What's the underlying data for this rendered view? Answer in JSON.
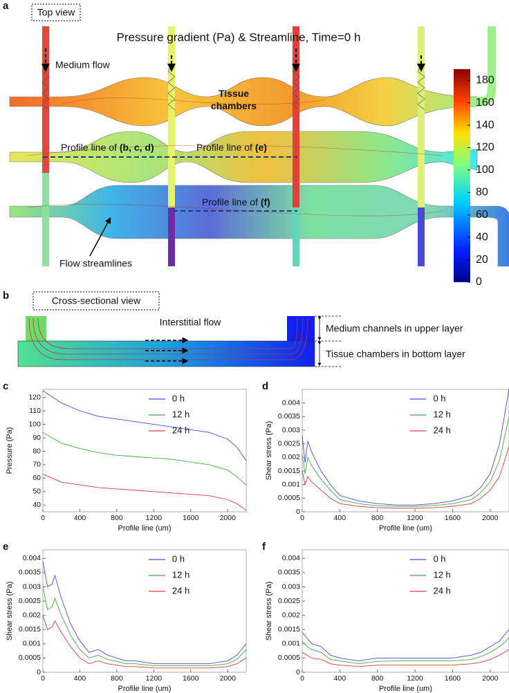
{
  "panel_a": {
    "letter": "a",
    "view": "Top view",
    "title": "Pressure gradient (Pa) & Streamline, Time=0 h",
    "medium_flow": "Medium flow",
    "tissue_chambers": "Tissue\nchambers",
    "profile_bcd": {
      "text": "Profile line of",
      "emphasis": "(b, c, d)"
    },
    "profile_e": {
      "text": "Profile line of",
      "emphasis": "(e)"
    },
    "profile_f": {
      "text": "Profile line of",
      "emphasis": "(f)"
    },
    "streamlines": "Flow streamlines",
    "colorbar": {
      "lim": [
        0,
        190
      ],
      "ticks": [
        0,
        20,
        40,
        60,
        80,
        100,
        120,
        140,
        160,
        180
      ]
    }
  },
  "panel_b": {
    "letter": "b",
    "view": "Cross-sectional view",
    "interstitial": "Interstitial flow",
    "upper": "Medium channels in upper layer",
    "bottom": "Tissue chambers in bottom layer"
  },
  "chart_data": [
    {
      "type": "line",
      "panel": "c",
      "ylabel": "Pressure (Pa)",
      "xlabel": "Profile line (um)",
      "x": [
        0,
        200,
        400,
        600,
        800,
        1000,
        1200,
        1400,
        1600,
        1800,
        2000,
        2100,
        2200
      ],
      "series": [
        {
          "name": "0 h",
          "color": "#4a4ad6",
          "values": [
            125,
            116,
            110,
            106,
            104,
            102,
            100,
            98,
            96,
            94,
            89,
            83,
            73
          ]
        },
        {
          "name": "12 h",
          "color": "#3fae3f",
          "values": [
            94,
            86,
            82,
            79,
            77,
            76,
            75,
            74,
            72,
            70,
            66,
            61,
            55
          ]
        },
        {
          "name": "24 h",
          "color": "#e03a3a",
          "values": [
            63,
            57,
            55,
            53,
            52,
            51,
            50,
            49,
            48,
            47,
            44,
            41,
            36
          ]
        }
      ],
      "xlim": [
        0,
        2200
      ],
      "xticks": [
        0,
        400,
        800,
        1200,
        1600,
        2000
      ],
      "ylim": [
        35,
        126
      ],
      "yticks": [
        40,
        50,
        60,
        70,
        80,
        90,
        100,
        110,
        120
      ],
      "legend": "upper right"
    },
    {
      "type": "line",
      "panel": "d",
      "ylabel": "Shear stress (Pa)",
      "xlabel": "Profile line (um)",
      "x": [
        0,
        30,
        60,
        100,
        200,
        300,
        400,
        600,
        800,
        1000,
        1200,
        1400,
        1600,
        1800,
        1900,
        2000,
        2100,
        2200
      ],
      "series": [
        {
          "name": "0 h",
          "color": "#4a4ad6",
          "values": [
            0.0028,
            0.0018,
            0.0026,
            0.0022,
            0.0015,
            0.001,
            0.0006,
            0.0004,
            0.0003,
            0.00025,
            0.00025,
            0.0003,
            0.0004,
            0.0006,
            0.0009,
            0.0014,
            0.0025,
            0.0045
          ]
        },
        {
          "name": "12 h",
          "color": "#3fae3f",
          "values": [
            0.0021,
            0.0014,
            0.002,
            0.0017,
            0.0012,
            0.0008,
            0.00045,
            0.0003,
            0.00022,
            0.0002,
            0.0002,
            0.00023,
            0.0003,
            0.00045,
            0.0007,
            0.0011,
            0.0019,
            0.0035
          ]
        },
        {
          "name": "24 h",
          "color": "#e03a3a",
          "values": [
            0.0015,
            0.001,
            0.0013,
            0.0011,
            0.0008,
            0.0005,
            0.0003,
            0.0002,
            0.00015,
            0.00013,
            0.00013,
            0.00015,
            0.0002,
            0.0003,
            0.0005,
            0.0008,
            0.0013,
            0.0024
          ]
        }
      ],
      "xlim": [
        0,
        2200
      ],
      "xticks": [
        0,
        400,
        800,
        1200,
        1600,
        2000
      ],
      "ylim": [
        0,
        0.0045
      ],
      "yticks": [
        0,
        0.0005,
        0.001,
        0.0015,
        0.002,
        0.0025,
        0.003,
        0.0035,
        0.004
      ],
      "legend": "upper right"
    },
    {
      "type": "line",
      "panel": "e",
      "ylabel": "Shear stress (Pa)",
      "xlabel": "Profile line (um)",
      "x": [
        0,
        50,
        100,
        130,
        200,
        300,
        400,
        500,
        600,
        700,
        800,
        900,
        1000,
        1200,
        1400,
        1600,
        1800,
        2000,
        2100,
        2200
      ],
      "series": [
        {
          "name": "0 h",
          "color": "#4a4ad6",
          "values": [
            0.0039,
            0.003,
            0.0031,
            0.0034,
            0.0026,
            0.0017,
            0.0011,
            0.0007,
            0.0008,
            0.0006,
            0.0005,
            0.0004,
            0.0004,
            0.0003,
            0.0003,
            0.0003,
            0.0003,
            0.0004,
            0.0006,
            0.001
          ]
        },
        {
          "name": "12 h",
          "color": "#3fae3f",
          "values": [
            0.003,
            0.0022,
            0.0023,
            0.0026,
            0.002,
            0.0013,
            0.0008,
            0.0005,
            0.0006,
            0.00045,
            0.00038,
            0.0003,
            0.0003,
            0.00023,
            0.00023,
            0.00023,
            0.00023,
            0.0003,
            0.00045,
            0.0008
          ]
        },
        {
          "name": "24 h",
          "color": "#e03a3a",
          "values": [
            0.002,
            0.0015,
            0.0016,
            0.0018,
            0.0014,
            0.0009,
            0.0005,
            0.0003,
            0.0004,
            0.0003,
            0.00025,
            0.0002,
            0.0002,
            0.00015,
            0.00015,
            0.00015,
            0.00015,
            0.0002,
            0.0003,
            0.0005
          ]
        }
      ],
      "xlim": [
        0,
        2200
      ],
      "xticks": [
        0,
        400,
        800,
        1200,
        1600,
        2000
      ],
      "ylim": [
        0,
        0.0043
      ],
      "yticks": [
        0,
        0.0005,
        0.001,
        0.0015,
        0.002,
        0.0025,
        0.003,
        0.0035,
        0.004
      ],
      "legend": "upper right"
    },
    {
      "type": "line",
      "panel": "f",
      "ylabel": "Shear stress (Pa)",
      "xlabel": "Profile line (um)",
      "x": [
        0,
        50,
        100,
        200,
        300,
        400,
        600,
        800,
        1000,
        1200,
        1400,
        1600,
        1800,
        1900,
        2000,
        2100,
        2200
      ],
      "series": [
        {
          "name": "0 h",
          "color": "#4a4ad6",
          "values": [
            0.0014,
            0.0012,
            0.001,
            0.0009,
            0.0006,
            0.0005,
            0.0004,
            0.0005,
            0.0005,
            0.0005,
            0.0005,
            0.0005,
            0.0006,
            0.0007,
            0.0009,
            0.0011,
            0.0015
          ]
        },
        {
          "name": "12 h",
          "color": "#3fae3f",
          "values": [
            0.0011,
            0.0009,
            0.0008,
            0.0007,
            0.00045,
            0.0004,
            0.0003,
            0.00038,
            0.0004,
            0.0004,
            0.0004,
            0.0004,
            0.00045,
            0.00055,
            0.0007,
            0.0009,
            0.0012
          ]
        },
        {
          "name": "24 h",
          "color": "#e03a3a",
          "values": [
            0.0007,
            0.0006,
            0.0005,
            0.00045,
            0.0003,
            0.00025,
            0.0002,
            0.00025,
            0.00025,
            0.00025,
            0.00025,
            0.00025,
            0.0003,
            0.00035,
            0.00045,
            0.0006,
            0.0008
          ]
        }
      ],
      "xlim": [
        0,
        2200
      ],
      "xticks": [
        0,
        400,
        800,
        1200,
        1600,
        2000
      ],
      "ylim": [
        0,
        0.0043
      ],
      "yticks": [
        0,
        0.0005,
        0.001,
        0.0015,
        0.002,
        0.0025,
        0.003,
        0.0035,
        0.004
      ],
      "legend": "upper right"
    }
  ]
}
